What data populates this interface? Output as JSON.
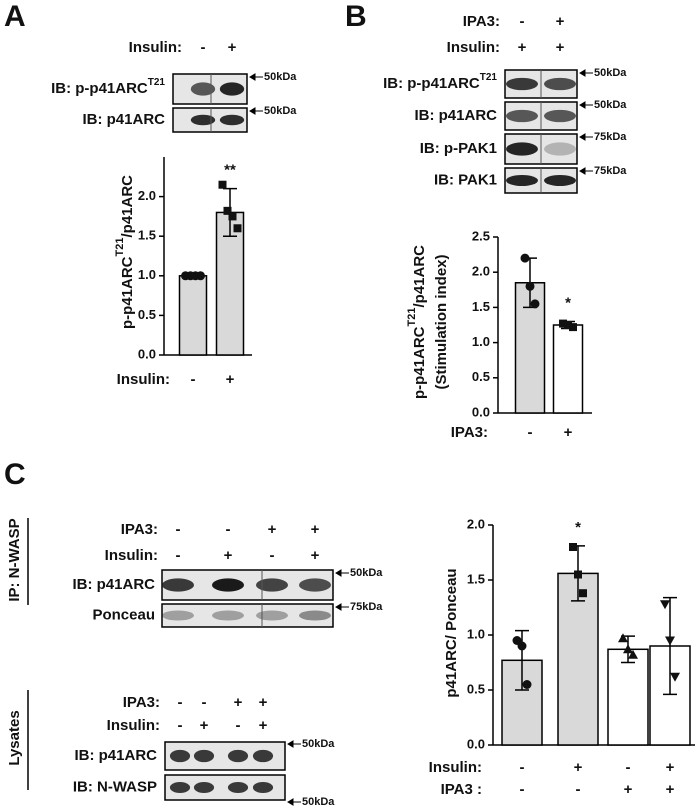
{
  "panels": {
    "A": {
      "label": "A",
      "lanes": [
        {
          "name": "Insulin:",
          "labels": [
            "-",
            "+"
          ]
        }
      ],
      "blots": [
        {
          "label": "IB: p-p41ARC",
          "sup": "T21",
          "marker": "50kDa"
        },
        {
          "label": "IB: p41ARC",
          "marker": "50kDa"
        }
      ]
    },
    "B": {
      "label": "B",
      "lanes": [
        {
          "name": "IPA3:",
          "labels": [
            "-",
            "+"
          ]
        },
        {
          "name": "Insulin:",
          "labels": [
            "+",
            "+"
          ]
        }
      ],
      "blots": [
        {
          "label": "IB: p-p41ARC",
          "sup": "T21",
          "marker": "50kDa"
        },
        {
          "label": "IB: p41ARC",
          "marker": "50kDa"
        },
        {
          "label": "IB: p-PAK1",
          "marker": "75kDa"
        },
        {
          "label": "IB: PAK1",
          "marker": "75kDa"
        }
      ]
    },
    "C": {
      "label": "C",
      "sections": [
        {
          "title": "IP: N-WASP",
          "lanes": [
            {
              "name": "IPA3:",
              "labels": [
                "-",
                "-",
                "+",
                "+"
              ]
            },
            {
              "name": "Insulin:",
              "labels": [
                "-",
                "+",
                "-",
                "+"
              ]
            }
          ],
          "blots": [
            {
              "label": "IB: p41ARC",
              "marker": "50kDa"
            },
            {
              "label": "Ponceau",
              "marker": "75kDa"
            }
          ]
        },
        {
          "title": "Lysates",
          "lanes": [
            {
              "name": "IPA3:",
              "labels": [
                "-",
                "-",
                "+",
                "+"
              ]
            },
            {
              "name": "Insulin:",
              "labels": [
                "-",
                "+",
                "-",
                "+"
              ]
            }
          ],
          "blots": [
            {
              "label": "IB: p41ARC",
              "marker": "50kDa"
            },
            {
              "label": "IB: N-WASP",
              "marker": "50kDa"
            }
          ]
        }
      ]
    }
  },
  "chart_data": [
    {
      "type": "bar",
      "y_label": {
        "text": "p-p41ARC",
        "sup": "T21",
        "rest": "/p41ARC"
      },
      "category_rows": [
        {
          "name": "Insulin:",
          "labels": [
            "-",
            "+"
          ]
        }
      ],
      "values": [
        1.0,
        1.8
      ],
      "errors": [
        0,
        0.3
      ],
      "points": [
        [
          1,
          1,
          1,
          1
        ],
        [
          2.15,
          1.82,
          1.75,
          1.6
        ]
      ],
      "markers": [
        "circle",
        "square"
      ],
      "colors": [
        "#d9d9d9",
        "#d9d9d9"
      ],
      "significance": [
        null,
        "**"
      ],
      "ylim": [
        0,
        2.5
      ],
      "yticks": [
        {
          "value": 0,
          "label": "0.0"
        },
        {
          "value": 0.5,
          "label": "0.5"
        },
        {
          "value": 1,
          "label": "1.0"
        },
        {
          "value": 1.5,
          "label": "1.5"
        },
        {
          "value": 2,
          "label": "2.0"
        }
      ]
    },
    {
      "type": "bar",
      "y_label": {
        "text": "p-p41ARC",
        "sup": "T21",
        "rest": "/p41ARC"
      },
      "y_label_2": "(Stimulation index)",
      "category_rows": [
        {
          "name": "IPA3:",
          "labels": [
            "-",
            "+"
          ]
        }
      ],
      "values": [
        1.85,
        1.25
      ],
      "errors": [
        0.35,
        0.05
      ],
      "points": [
        [
          2.2,
          1.8,
          1.55
        ],
        [
          1.27,
          1.25,
          1.22
        ]
      ],
      "markers": [
        "circle",
        "square"
      ],
      "colors": [
        "#d9d9d9",
        "#ffffff"
      ],
      "significance": [
        null,
        "*"
      ],
      "ylim": [
        0,
        2.5
      ],
      "yticks": [
        {
          "value": 0,
          "label": "0.0"
        },
        {
          "value": 0.5,
          "label": "0.5"
        },
        {
          "value": 1,
          "label": "1.0"
        },
        {
          "value": 1.5,
          "label": "1.5"
        },
        {
          "value": 2,
          "label": "2.0"
        },
        {
          "value": 2.5,
          "label": "2.5"
        }
      ]
    },
    {
      "type": "bar",
      "y_label": {
        "text": "p41ARC/ Ponceau"
      },
      "category_rows": [
        {
          "name": "Insulin:",
          "labels": [
            "-",
            "+",
            "-",
            "+"
          ]
        },
        {
          "name": "IPA3 :",
          "labels": [
            "-",
            "-",
            "+",
            "+"
          ]
        }
      ],
      "values": [
        0.77,
        1.56,
        0.87,
        0.9
      ],
      "errors": [
        0.27,
        0.25,
        0.12,
        0.44
      ],
      "points": [
        [
          0.95,
          0.9,
          0.55
        ],
        [
          1.8,
          1.55,
          1.38
        ],
        [
          0.97,
          0.87,
          0.82
        ],
        [
          1.28,
          0.95,
          0.62
        ]
      ],
      "markers": [
        "circle",
        "square",
        "triangle-up",
        "triangle-down"
      ],
      "colors": [
        "#d9d9d9",
        "#d9d9d9",
        "#ffffff",
        "#ffffff"
      ],
      "significance": [
        null,
        "*",
        null,
        null
      ],
      "ylim": [
        0,
        2.0
      ],
      "yticks": [
        {
          "value": 0,
          "label": "0.0"
        },
        {
          "value": 0.5,
          "label": "0.5"
        },
        {
          "value": 1,
          "label": "1.0"
        },
        {
          "value": 1.5,
          "label": "1.5"
        },
        {
          "value": 2,
          "label": "2.0"
        }
      ]
    }
  ]
}
